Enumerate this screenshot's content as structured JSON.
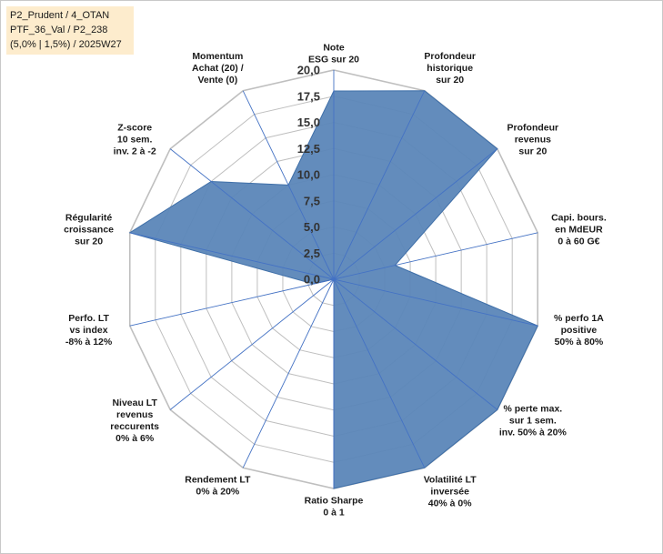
{
  "info_box": {
    "line1": "P2_Prudent / 4_OTAN",
    "line2": "PTF_36_Val / P2_238",
    "line3": "(5,0% | 1,5%) / 2025W27"
  },
  "colors": {
    "fill": "#5b86b8",
    "stroke": "#3f6fa8",
    "grid": "#bfbfbf",
    "spoke": "#4472c4"
  },
  "chart_data": {
    "type": "radar",
    "title": "",
    "rmax": 20,
    "ticks": [
      "0,0",
      "2,5",
      "5,0",
      "7,5",
      "10,0",
      "12,5",
      "15,0",
      "17,5",
      "20,0"
    ],
    "axes": [
      [
        "Note",
        "ESG sur 20"
      ],
      [
        "Profondeur",
        "historique",
        "sur 20"
      ],
      [
        "Profondeur",
        "revenus",
        "sur 20"
      ],
      [
        "Capi. bours.",
        "en MdEUR",
        "0 à 60 G€"
      ],
      [
        "% perfo 1A",
        "positive",
        "50% à 80%"
      ],
      [
        "% perte max.",
        "sur 1 sem.",
        "inv. 50% à 20%"
      ],
      [
        "Volatilité LT",
        "inversée",
        "40% à 0%"
      ],
      [
        "Ratio Sharpe",
        "0 à 1"
      ],
      [
        "Rendement LT",
        "0% à 20%"
      ],
      [
        "Niveau LT",
        "revenus",
        "reccurents",
        "0% à 6%"
      ],
      [
        "Perfo. LT",
        "vs index",
        "-8% à 12%"
      ],
      [
        "Régularité",
        "croissance",
        "sur 20"
      ],
      [
        "Z-score",
        "10 sem.",
        "inv. 2 à -2"
      ],
      [
        "Momentum",
        "Achat (20) /",
        "Vente (0)"
      ]
    ],
    "values": [
      18,
      20,
      20,
      6,
      20,
      20,
      20,
      20,
      0,
      0,
      2,
      20,
      15,
      10
    ],
    "grid": true,
    "legend": "none"
  }
}
